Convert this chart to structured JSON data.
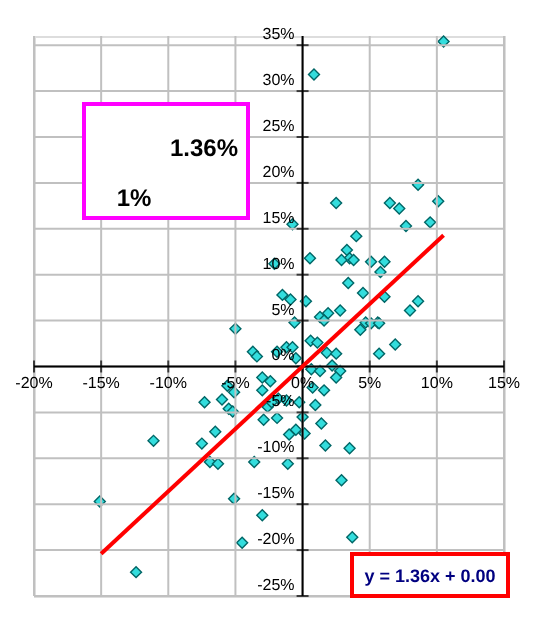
{
  "chart_data": {
    "type": "scatter",
    "grid": true,
    "xlim": [
      -20,
      15
    ],
    "ylim": [
      -25,
      36
    ],
    "xticks": [
      {
        "value": -20,
        "label": "-20%"
      },
      {
        "value": -15,
        "label": "-15%"
      },
      {
        "value": -10,
        "label": "-10%"
      },
      {
        "value": -5,
        "label": "-5%"
      },
      {
        "value": 0,
        "label": "0%"
      },
      {
        "value": 5,
        "label": "5%"
      },
      {
        "value": 10,
        "label": "10%"
      },
      {
        "value": 15,
        "label": "15%"
      }
    ],
    "yticks": [
      {
        "value": -25,
        "label": "-25%"
      },
      {
        "value": -20,
        "label": "-20%"
      },
      {
        "value": -15,
        "label": "-15%"
      },
      {
        "value": -10,
        "label": "-10%"
      },
      {
        "value": -5,
        "label": "-5%"
      },
      {
        "value": 0,
        "label": "0%"
      },
      {
        "value": 5,
        "label": "5%"
      },
      {
        "value": 10,
        "label": "10%"
      },
      {
        "value": 15,
        "label": "15%"
      },
      {
        "value": 20,
        "label": "20%"
      },
      {
        "value": 25,
        "label": "25%"
      },
      {
        "value": 30,
        "label": "30%"
      },
      {
        "value": 35,
        "label": "35%"
      }
    ],
    "annotations": [
      "1.36%",
      "1%",
      "y = 1.36x + 0.00"
    ],
    "series": [
      {
        "marker": "diamond",
        "color": "#33dddd",
        "x": [
          10.5,
          0.85,
          2.5,
          8.6,
          10.1,
          6.5,
          7.2,
          7.7,
          9.5,
          -0.75,
          -2.1,
          0.55,
          4.0,
          3.3,
          3.5,
          2.9,
          3.8,
          5.1,
          6.1,
          5.8,
          3.4,
          4.5,
          6.1,
          -1.5,
          -0.9,
          0.25,
          8.6,
          8.0,
          1.9,
          2.8,
          -0.6,
          1.3,
          1.6,
          5.6,
          4.7,
          -5,
          4.3,
          5.1,
          5.7,
          5.7,
          6.9,
          -3.7,
          -3.4,
          -1.2,
          -0.75,
          -1.9,
          -0.5,
          0.6,
          1.1,
          1.8,
          2.5,
          0.65,
          1.3,
          2.2,
          2.8,
          2.5,
          1.6,
          0.75,
          -3.0,
          -2.4,
          -5.6,
          -5.1,
          -3.0,
          -1.8,
          -1.2,
          -0.25,
          -7.3,
          -6,
          -5.5,
          -5.2,
          -2.6,
          -2.3,
          -1.9,
          -2.9,
          0.95,
          0,
          1.4,
          -0.5,
          -1.0,
          0.15,
          -6.5,
          -11.1,
          -7.5,
          1.7,
          3.5,
          -6.9,
          -6.3,
          -3.6,
          -1.1,
          2.9,
          -15.1,
          -5.1,
          -3.0,
          -4.5,
          3.7,
          -12.4
        ],
        "values": [
          35.4,
          31.8,
          17.8,
          19.8,
          18,
          17.8,
          17.2,
          15.3,
          15.7,
          15.5,
          11.2,
          11.8,
          14.2,
          12.7,
          11.8,
          11.6,
          11.6,
          11.4,
          11.4,
          10.3,
          9.1,
          8.0,
          7.6,
          7.8,
          7.3,
          7.1,
          7.1,
          6.1,
          5.8,
          6.1,
          4.8,
          5.4,
          5.0,
          4.8,
          4.8,
          4.1,
          4.0,
          4.7,
          4.7,
          1.4,
          2.4,
          1.6,
          1.1,
          2.1,
          2.1,
          1.6,
          0.9,
          2.8,
          2.6,
          1.5,
          1.4,
          -0.3,
          -0.5,
          0.1,
          -0.5,
          -1.2,
          -2.6,
          -2.3,
          -1.2,
          -1.6,
          -2.1,
          -2.8,
          -2.6,
          -3.5,
          -3.7,
          -3.9,
          -3.9,
          -3.6,
          -4.6,
          -4.9,
          -4.4,
          -3.9,
          -5.6,
          -5.8,
          -4.2,
          -5.5,
          -6.2,
          -6.9,
          -7.4,
          -7.3,
          -7.1,
          -8.1,
          -8.4,
          -8.6,
          -8.9,
          -10.4,
          -10.6,
          -10.4,
          -10.6,
          -12.4,
          -14.7,
          -14.4,
          -16.2,
          -19.2,
          -18.6,
          -22.4
        ]
      },
      {
        "type": "line",
        "color": "#ff0000",
        "x": [
          -15,
          10.5
        ],
        "values": [
          -20.4,
          14.3
        ]
      }
    ]
  }
}
